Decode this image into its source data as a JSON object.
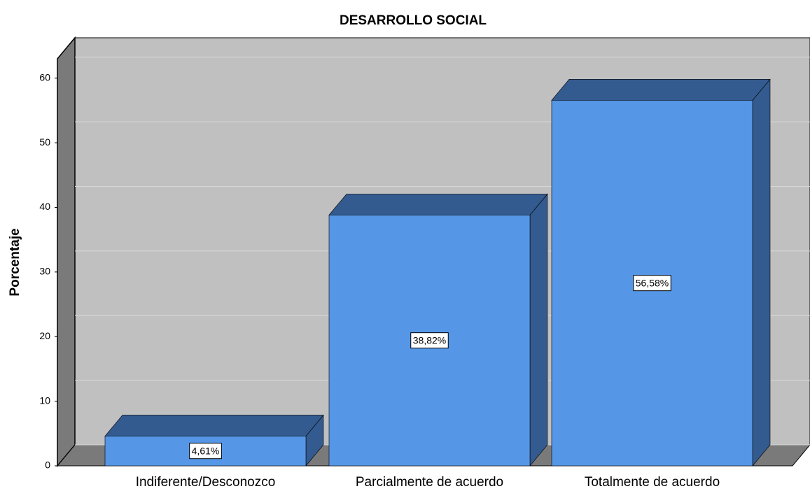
{
  "chart_data": {
    "type": "bar",
    "title": "DESARROLLO SOCIAL",
    "y_label": "Porcentaje",
    "categories": [
      "Indiferente/Desconozco",
      "Parcialmente de acuerdo",
      "Totalmente de acuerdo"
    ],
    "values": [
      4.61,
      38.82,
      56.58
    ],
    "value_labels": [
      "4,61%",
      "38,82%",
      "56,58%"
    ],
    "color": "#5596e6",
    "ylim": [
      0,
      63
    ],
    "yticks": [
      0,
      10,
      20,
      30,
      40,
      50,
      60
    ],
    "grid": true
  }
}
